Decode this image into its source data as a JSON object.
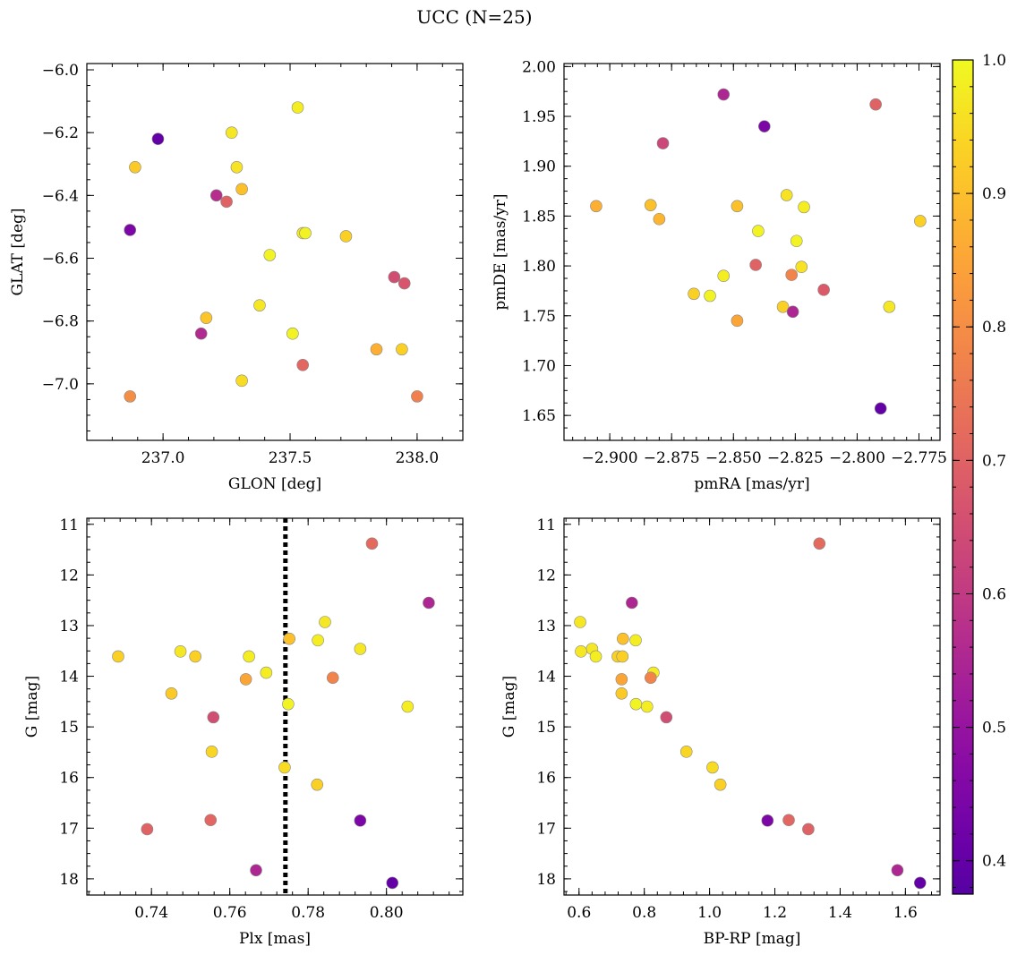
{
  "title": "UCC (N=25)",
  "colorbar": {
    "range": [
      0.375,
      1.0
    ],
    "ticks": [
      "0.4",
      "0.5",
      "0.6",
      "0.7",
      "0.8",
      "0.9",
      "1.0"
    ],
    "tick_values": [
      0.4,
      0.5,
      0.6,
      0.7,
      0.8,
      0.9,
      1.0
    ],
    "colormap": "plasma"
  },
  "chart_data": [
    {
      "type": "scatter",
      "id": "glon-glat",
      "xlabel": "GLON [deg]",
      "ylabel": "GLAT [deg]",
      "xlim": [
        236.7,
        238.18
      ],
      "ylim": [
        -7.18,
        -5.98
      ],
      "y_inverted": false,
      "xticks": [
        237.0,
        237.5,
        238.0
      ],
      "xtick_labels": [
        "237.0",
        "237.5",
        "238.0"
      ],
      "yticks": [
        -6.0,
        -6.2,
        -6.4,
        -6.6,
        -6.8,
        -7.0
      ],
      "ytick_labels": [
        "−6.0",
        "−6.2",
        "−6.4",
        "−6.6",
        "−6.8",
        "−7.0"
      ],
      "points": [
        {
          "x": 236.98,
          "y": -6.22,
          "c": 0.4
        },
        {
          "x": 236.89,
          "y": -6.31,
          "c": 0.92
        },
        {
          "x": 236.87,
          "y": -6.51,
          "c": 0.45
        },
        {
          "x": 236.87,
          "y": -7.04,
          "c": 0.8
        },
        {
          "x": 237.27,
          "y": -6.2,
          "c": 0.97
        },
        {
          "x": 237.29,
          "y": -6.31,
          "c": 0.96
        },
        {
          "x": 237.31,
          "y": -6.38,
          "c": 0.9
        },
        {
          "x": 237.21,
          "y": -6.4,
          "c": 0.57
        },
        {
          "x": 237.25,
          "y": -6.42,
          "c": 0.7
        },
        {
          "x": 237.53,
          "y": -6.12,
          "c": 0.98
        },
        {
          "x": 237.55,
          "y": -6.52,
          "c": 0.97
        },
        {
          "x": 237.56,
          "y": -6.52,
          "c": 0.99
        },
        {
          "x": 237.72,
          "y": -6.53,
          "c": 0.93
        },
        {
          "x": 237.42,
          "y": -6.59,
          "c": 0.99
        },
        {
          "x": 237.38,
          "y": -6.75,
          "c": 0.97
        },
        {
          "x": 237.17,
          "y": -6.79,
          "c": 0.91
        },
        {
          "x": 237.15,
          "y": -6.84,
          "c": 0.56
        },
        {
          "x": 237.51,
          "y": -6.84,
          "c": 0.99
        },
        {
          "x": 237.91,
          "y": -6.66,
          "c": 0.65
        },
        {
          "x": 237.95,
          "y": -6.68,
          "c": 0.67
        },
        {
          "x": 237.84,
          "y": -6.89,
          "c": 0.87
        },
        {
          "x": 237.94,
          "y": -6.89,
          "c": 0.93
        },
        {
          "x": 237.55,
          "y": -6.94,
          "c": 0.71
        },
        {
          "x": 237.31,
          "y": -6.99,
          "c": 0.95
        },
        {
          "x": 238.0,
          "y": -7.04,
          "c": 0.77
        }
      ]
    },
    {
      "type": "scatter",
      "id": "pmra-pmde",
      "xlabel": "pmRA [mas/yr]",
      "ylabel": "pmDE [mas/yr]",
      "xlim": [
        -2.9185,
        -2.7665
      ],
      "ylim": [
        1.625,
        2.003
      ],
      "y_inverted": false,
      "xticks": [
        -2.9,
        -2.875,
        -2.85,
        -2.825,
        -2.8,
        -2.775
      ],
      "xtick_labels": [
        "−2.900",
        "−2.875",
        "−2.850",
        "−2.825",
        "−2.800",
        "−2.775"
      ],
      "yticks": [
        1.65,
        1.7,
        1.75,
        1.8,
        1.85,
        1.9,
        1.95,
        2.0
      ],
      "ytick_labels": [
        "1.65",
        "1.70",
        "1.75",
        "1.80",
        "1.85",
        "1.90",
        "1.95",
        "2.00"
      ],
      "points": [
        {
          "x": -2.854,
          "y": 1.972,
          "c": 0.55
        },
        {
          "x": -2.8375,
          "y": 1.94,
          "c": 0.45
        },
        {
          "x": -2.7925,
          "y": 1.962,
          "c": 0.7
        },
        {
          "x": -2.8785,
          "y": 1.923,
          "c": 0.63
        },
        {
          "x": -2.9055,
          "y": 1.86,
          "c": 0.87
        },
        {
          "x": -2.8835,
          "y": 1.861,
          "c": 0.9
        },
        {
          "x": -2.88,
          "y": 1.847,
          "c": 0.88
        },
        {
          "x": -2.8485,
          "y": 1.86,
          "c": 0.9
        },
        {
          "x": -2.8285,
          "y": 1.871,
          "c": 0.96
        },
        {
          "x": -2.8215,
          "y": 1.859,
          "c": 0.98
        },
        {
          "x": -2.7745,
          "y": 1.845,
          "c": 0.93
        },
        {
          "x": -2.84,
          "y": 1.835,
          "c": 0.99
        },
        {
          "x": -2.8245,
          "y": 1.825,
          "c": 0.99
        },
        {
          "x": -2.8225,
          "y": 1.799,
          "c": 0.96
        },
        {
          "x": -2.841,
          "y": 1.801,
          "c": 0.7
        },
        {
          "x": -2.854,
          "y": 1.79,
          "c": 0.98
        },
        {
          "x": -2.8265,
          "y": 1.791,
          "c": 0.78
        },
        {
          "x": -2.8135,
          "y": 1.776,
          "c": 0.68
        },
        {
          "x": -2.866,
          "y": 1.772,
          "c": 0.93
        },
        {
          "x": -2.8595,
          "y": 1.77,
          "c": 0.99
        },
        {
          "x": -2.787,
          "y": 1.759,
          "c": 0.97
        },
        {
          "x": -2.83,
          "y": 1.759,
          "c": 0.93
        },
        {
          "x": -2.826,
          "y": 1.754,
          "c": 0.55
        },
        {
          "x": -2.8485,
          "y": 1.745,
          "c": 0.85
        },
        {
          "x": -2.7905,
          "y": 1.657,
          "c": 0.4
        }
      ]
    },
    {
      "type": "scatter",
      "id": "plx-g",
      "xlabel": "Plx [mas]",
      "ylabel": "G [mag]",
      "xlim": [
        0.7235,
        0.8195
      ],
      "ylim": [
        10.88,
        18.32
      ],
      "y_inverted": true,
      "vline": 0.7742,
      "xticks": [
        0.74,
        0.76,
        0.78,
        0.8
      ],
      "xtick_labels": [
        "0.74",
        "0.76",
        "0.78",
        "0.80"
      ],
      "yticks": [
        11,
        12,
        13,
        14,
        15,
        16,
        17,
        18
      ],
      "ytick_labels": [
        "11",
        "12",
        "13",
        "14",
        "15",
        "16",
        "17",
        "18"
      ],
      "points": [
        {
          "x": 0.7963,
          "y": 11.38,
          "c": 0.72
        },
        {
          "x": 0.8108,
          "y": 12.55,
          "c": 0.55
        },
        {
          "x": 0.7843,
          "y": 12.93,
          "c": 0.97
        },
        {
          "x": 0.7752,
          "y": 13.26,
          "c": 0.9
        },
        {
          "x": 0.7825,
          "y": 13.29,
          "c": 0.98
        },
        {
          "x": 0.7933,
          "y": 13.46,
          "c": 0.97
        },
        {
          "x": 0.7474,
          "y": 13.51,
          "c": 0.97
        },
        {
          "x": 0.7512,
          "y": 13.61,
          "c": 0.93
        },
        {
          "x": 0.7315,
          "y": 13.61,
          "c": 0.93
        },
        {
          "x": 0.7649,
          "y": 13.61,
          "c": 0.98
        },
        {
          "x": 0.7693,
          "y": 13.93,
          "c": 0.98
        },
        {
          "x": 0.7641,
          "y": 14.06,
          "c": 0.85
        },
        {
          "x": 0.7863,
          "y": 14.03,
          "c": 0.78
        },
        {
          "x": 0.7451,
          "y": 14.34,
          "c": 0.92
        },
        {
          "x": 0.7749,
          "y": 14.55,
          "c": 0.99
        },
        {
          "x": 0.8054,
          "y": 14.6,
          "c": 0.98
        },
        {
          "x": 0.7558,
          "y": 14.81,
          "c": 0.65
        },
        {
          "x": 0.7554,
          "y": 15.49,
          "c": 0.94
        },
        {
          "x": 0.774,
          "y": 15.8,
          "c": 0.95
        },
        {
          "x": 0.7823,
          "y": 16.14,
          "c": 0.93
        },
        {
          "x": 0.7551,
          "y": 16.84,
          "c": 0.71
        },
        {
          "x": 0.7933,
          "y": 16.85,
          "c": 0.45
        },
        {
          "x": 0.7389,
          "y": 17.02,
          "c": 0.7
        },
        {
          "x": 0.7667,
          "y": 17.83,
          "c": 0.55
        },
        {
          "x": 0.8015,
          "y": 18.08,
          "c": 0.4
        }
      ]
    },
    {
      "type": "scatter",
      "id": "bprp-g",
      "xlabel": "BP-RP [mag]",
      "ylabel": "G [mag]",
      "xlim": [
        0.554,
        1.706
      ],
      "ylim": [
        10.88,
        18.32
      ],
      "y_inverted": true,
      "xticks": [
        0.6,
        0.8,
        1.0,
        1.2,
        1.4,
        1.6
      ],
      "xtick_labels": [
        "0.6",
        "0.8",
        "1.0",
        "1.2",
        "1.4",
        "1.6"
      ],
      "yticks": [
        11,
        12,
        13,
        14,
        15,
        16,
        17,
        18
      ],
      "ytick_labels": [
        "11",
        "12",
        "13",
        "14",
        "15",
        "16",
        "17",
        "18"
      ],
      "points": [
        {
          "x": 1.3365,
          "y": 11.38,
          "c": 0.72
        },
        {
          "x": 0.762,
          "y": 12.55,
          "c": 0.55
        },
        {
          "x": 0.6035,
          "y": 12.93,
          "c": 0.97
        },
        {
          "x": 0.7345,
          "y": 13.26,
          "c": 0.9
        },
        {
          "x": 0.7735,
          "y": 13.29,
          "c": 0.98
        },
        {
          "x": 0.64,
          "y": 13.46,
          "c": 0.97
        },
        {
          "x": 0.606,
          "y": 13.51,
          "c": 0.97
        },
        {
          "x": 0.7185,
          "y": 13.61,
          "c": 0.93
        },
        {
          "x": 0.733,
          "y": 13.61,
          "c": 0.93
        },
        {
          "x": 0.6515,
          "y": 13.61,
          "c": 0.98
        },
        {
          "x": 0.828,
          "y": 13.93,
          "c": 0.98
        },
        {
          "x": 0.7305,
          "y": 14.06,
          "c": 0.85
        },
        {
          "x": 0.8195,
          "y": 14.03,
          "c": 0.78
        },
        {
          "x": 0.7305,
          "y": 14.34,
          "c": 0.92
        },
        {
          "x": 0.7745,
          "y": 14.55,
          "c": 0.99
        },
        {
          "x": 0.8085,
          "y": 14.6,
          "c": 0.98
        },
        {
          "x": 0.8675,
          "y": 14.81,
          "c": 0.65
        },
        {
          "x": 0.929,
          "y": 15.49,
          "c": 0.94
        },
        {
          "x": 1.009,
          "y": 15.8,
          "c": 0.95
        },
        {
          "x": 1.033,
          "y": 16.14,
          "c": 0.93
        },
        {
          "x": 1.2425,
          "y": 16.84,
          "c": 0.71
        },
        {
          "x": 1.1775,
          "y": 16.85,
          "c": 0.45
        },
        {
          "x": 1.3025,
          "y": 17.02,
          "c": 0.7
        },
        {
          "x": 1.5755,
          "y": 17.83,
          "c": 0.55
        },
        {
          "x": 1.645,
          "y": 18.08,
          "c": 0.4
        }
      ]
    }
  ]
}
